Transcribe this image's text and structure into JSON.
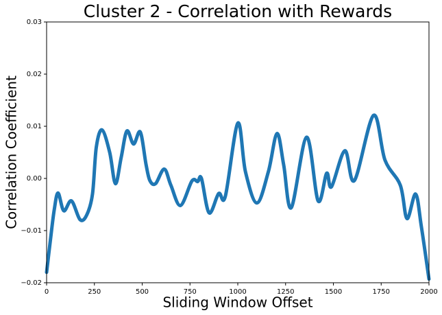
{
  "chart_data": {
    "type": "line",
    "title": "Cluster 2 - Correlation with Rewards",
    "xlabel": "Sliding Window Offset",
    "ylabel": "Correlation Coefficient",
    "x": [
      0,
      20,
      40,
      60,
      90,
      130,
      175,
      210,
      240,
      260,
      290,
      330,
      360,
      390,
      420,
      455,
      490,
      520,
      540,
      570,
      615,
      650,
      700,
      760,
      790,
      810,
      850,
      900,
      935,
      1000,
      1040,
      1100,
      1160,
      1205,
      1240,
      1280,
      1360,
      1420,
      1465,
      1490,
      1560,
      1610,
      1710,
      1770,
      1850,
      1885,
      1930,
      1960,
      2000
    ],
    "series": [
      {
        "name": "Cluster 2",
        "color": "#1f77b4",
        "values": [
          -0.018,
          -0.0118,
          -0.006,
          -0.0028,
          -0.0062,
          -0.0043,
          -0.0079,
          -0.007,
          -0.003,
          0.006,
          0.0093,
          0.005,
          -0.001,
          0.004,
          0.0091,
          0.0066,
          0.0089,
          0.0027,
          -0.0004,
          -0.001,
          0.0018,
          -0.0013,
          -0.0052,
          -0.0005,
          -0.0006,
          0.0,
          -0.0066,
          -0.0029,
          -0.0034,
          0.0106,
          0.0013,
          -0.0047,
          0.0013,
          0.0086,
          0.0026,
          -0.0056,
          0.0079,
          -0.0043,
          0.001,
          -0.0016,
          0.0053,
          -0.0004,
          0.0121,
          0.0035,
          -0.0013,
          -0.0077,
          -0.003,
          -0.0092,
          -0.0193
        ]
      }
    ],
    "xlim": [
      0,
      2000
    ],
    "xticks": [
      0,
      250,
      500,
      750,
      1000,
      1250,
      1500,
      1750,
      2000
    ],
    "ylim": [
      -0.02,
      0.03
    ],
    "yticks": [
      {
        "value": -0.02,
        "label": "−0.02"
      },
      {
        "value": -0.01,
        "label": "−0.01"
      },
      {
        "value": 0,
        "label": "0.00"
      },
      0.01,
      0.02,
      0.03
    ],
    "grid": false
  }
}
